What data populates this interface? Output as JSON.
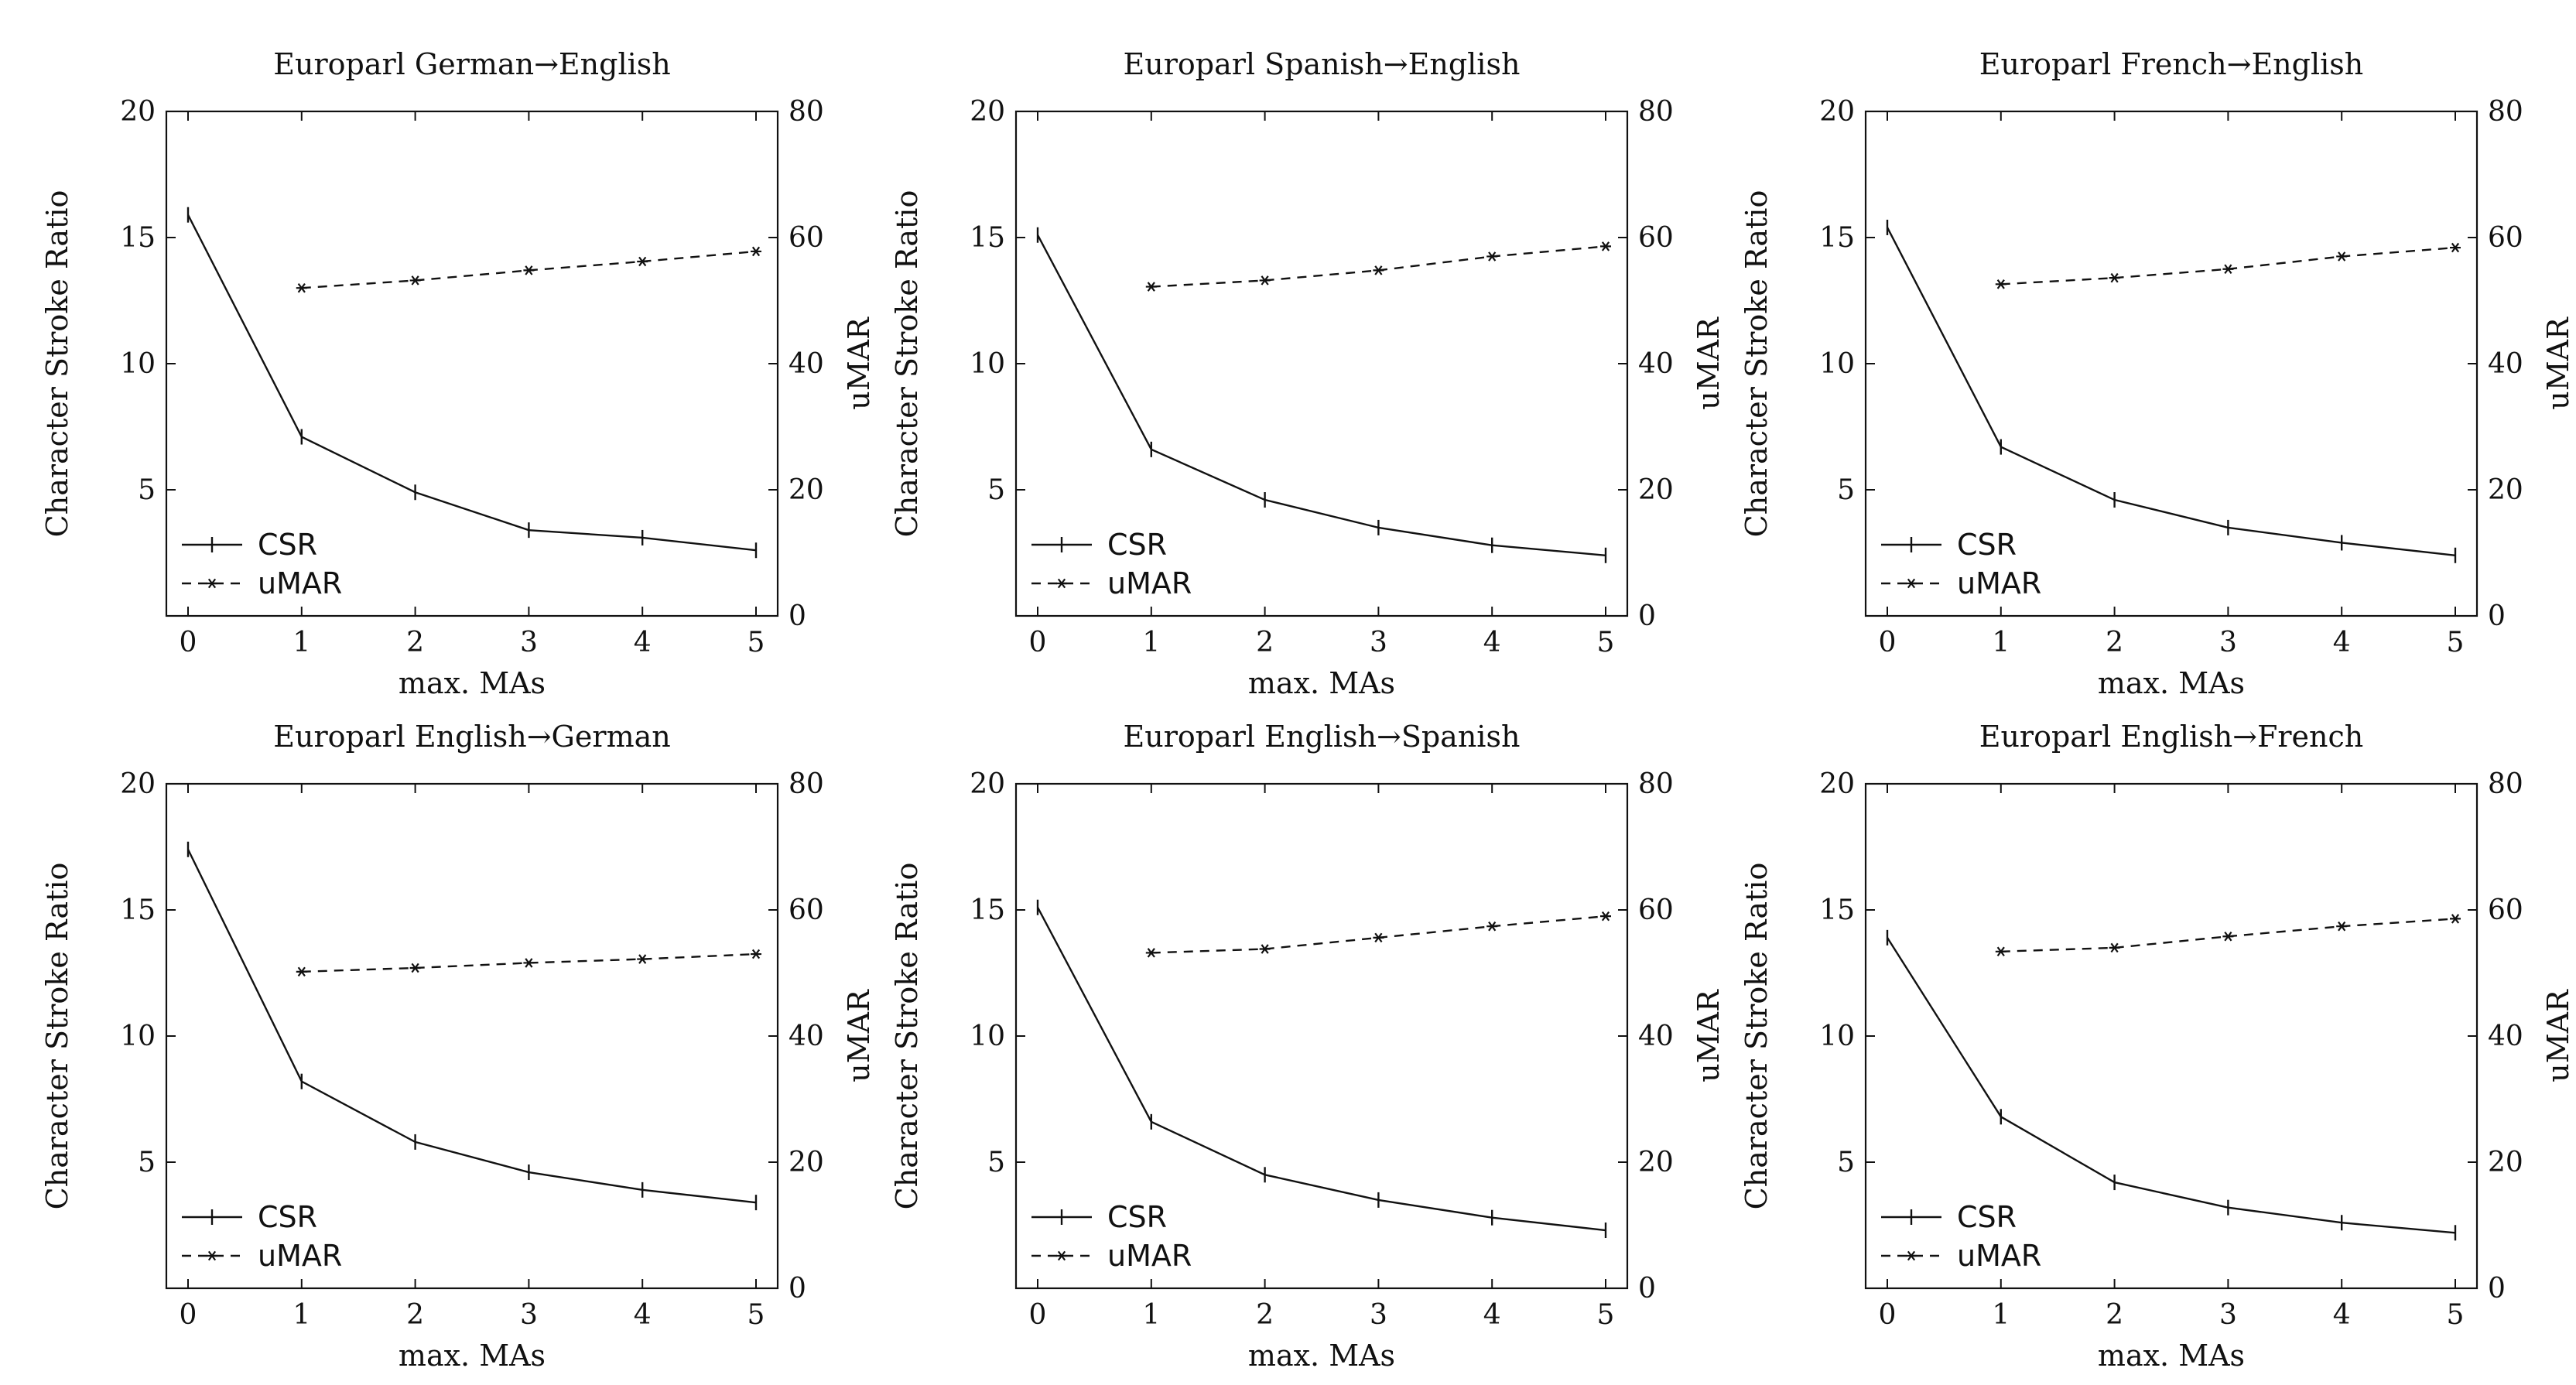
{
  "figure": {
    "description_none": ""
  },
  "chart_data": [
    {
      "type": "line",
      "title": "Europarl German→English",
      "xlabel": "max. MAs",
      "ylabel": "Character Stroke Ratio",
      "y2label": "uMAR",
      "xlim": [
        0,
        5
      ],
      "ylim": [
        0,
        20
      ],
      "y2lim": [
        0,
        80
      ],
      "xticks": [
        0,
        1,
        2,
        3,
        4,
        5
      ],
      "yticks": [
        5,
        10,
        15,
        20
      ],
      "y2ticks": [
        0,
        20,
        40,
        60,
        80
      ],
      "legend_position": "bottom-left",
      "series": [
        {
          "name": "CSR",
          "axis": "left",
          "style": "solid",
          "marker": "plus",
          "x": [
            0,
            1,
            2,
            3,
            4,
            5
          ],
          "values": [
            15.9,
            7.1,
            4.9,
            3.4,
            3.1,
            2.6
          ]
        },
        {
          "name": "uMAR",
          "axis": "right",
          "style": "dashed",
          "marker": "star",
          "x": [
            1,
            2,
            3,
            4,
            5
          ],
          "values": [
            52.0,
            53.2,
            54.8,
            56.2,
            57.8
          ]
        }
      ]
    },
    {
      "type": "line",
      "title": "Europarl Spanish→English",
      "xlabel": "max. MAs",
      "ylabel": "Character Stroke Ratio",
      "y2label": "uMAR",
      "xlim": [
        0,
        5
      ],
      "ylim": [
        0,
        20
      ],
      "y2lim": [
        0,
        80
      ],
      "xticks": [
        0,
        1,
        2,
        3,
        4,
        5
      ],
      "yticks": [
        5,
        10,
        15,
        20
      ],
      "y2ticks": [
        0,
        20,
        40,
        60,
        80
      ],
      "legend_position": "bottom-left",
      "series": [
        {
          "name": "CSR",
          "axis": "left",
          "style": "solid",
          "marker": "plus",
          "x": [
            0,
            1,
            2,
            3,
            4,
            5
          ],
          "values": [
            15.1,
            6.6,
            4.6,
            3.5,
            2.8,
            2.4
          ]
        },
        {
          "name": "uMAR",
          "axis": "right",
          "style": "dashed",
          "marker": "star",
          "x": [
            1,
            2,
            3,
            4,
            5
          ],
          "values": [
            52.2,
            53.2,
            54.8,
            57.0,
            58.6
          ]
        }
      ]
    },
    {
      "type": "line",
      "title": "Europarl French→English",
      "xlabel": "max. MAs",
      "ylabel": "Character Stroke Ratio",
      "y2label": "uMAR",
      "xlim": [
        0,
        5
      ],
      "ylim": [
        0,
        20
      ],
      "y2lim": [
        0,
        80
      ],
      "xticks": [
        0,
        1,
        2,
        3,
        4,
        5
      ],
      "yticks": [
        5,
        10,
        15,
        20
      ],
      "y2ticks": [
        0,
        20,
        40,
        60,
        80
      ],
      "legend_position": "bottom-left",
      "series": [
        {
          "name": "CSR",
          "axis": "left",
          "style": "solid",
          "marker": "plus",
          "x": [
            0,
            1,
            2,
            3,
            4,
            5
          ],
          "values": [
            15.4,
            6.7,
            4.6,
            3.5,
            2.9,
            2.4
          ]
        },
        {
          "name": "uMAR",
          "axis": "right",
          "style": "dashed",
          "marker": "star",
          "x": [
            1,
            2,
            3,
            4,
            5
          ],
          "values": [
            52.6,
            53.6,
            55.0,
            57.0,
            58.4
          ]
        }
      ]
    },
    {
      "type": "line",
      "title": "Europarl English→German",
      "xlabel": "max. MAs",
      "ylabel": "Character Stroke Ratio",
      "y2label": "uMAR",
      "xlim": [
        0,
        5
      ],
      "ylim": [
        0,
        20
      ],
      "y2lim": [
        0,
        80
      ],
      "xticks": [
        0,
        1,
        2,
        3,
        4,
        5
      ],
      "yticks": [
        5,
        10,
        15,
        20
      ],
      "y2ticks": [
        0,
        20,
        40,
        60,
        80
      ],
      "legend_position": "bottom-left",
      "series": [
        {
          "name": "CSR",
          "axis": "left",
          "style": "solid",
          "marker": "plus",
          "x": [
            0,
            1,
            2,
            3,
            4,
            5
          ],
          "values": [
            17.4,
            8.2,
            5.8,
            4.6,
            3.9,
            3.4
          ]
        },
        {
          "name": "uMAR",
          "axis": "right",
          "style": "dashed",
          "marker": "star",
          "x": [
            1,
            2,
            3,
            4,
            5
          ],
          "values": [
            50.2,
            50.8,
            51.6,
            52.2,
            53.0
          ]
        }
      ]
    },
    {
      "type": "line",
      "title": "Europarl English→Spanish",
      "xlabel": "max. MAs",
      "ylabel": "Character Stroke Ratio",
      "y2label": "uMAR",
      "xlim": [
        0,
        5
      ],
      "ylim": [
        0,
        20
      ],
      "y2lim": [
        0,
        80
      ],
      "xticks": [
        0,
        1,
        2,
        3,
        4,
        5
      ],
      "yticks": [
        5,
        10,
        15,
        20
      ],
      "y2ticks": [
        0,
        20,
        40,
        60,
        80
      ],
      "legend_position": "bottom-left",
      "series": [
        {
          "name": "CSR",
          "axis": "left",
          "style": "solid",
          "marker": "plus",
          "x": [
            0,
            1,
            2,
            3,
            4,
            5
          ],
          "values": [
            15.1,
            6.6,
            4.5,
            3.5,
            2.8,
            2.3
          ]
        },
        {
          "name": "uMAR",
          "axis": "right",
          "style": "dashed",
          "marker": "star",
          "x": [
            1,
            2,
            3,
            4,
            5
          ],
          "values": [
            53.2,
            53.8,
            55.6,
            57.4,
            59.0
          ]
        }
      ]
    },
    {
      "type": "line",
      "title": "Europarl English→French",
      "xlabel": "max. MAs",
      "ylabel": "Character Stroke Ratio",
      "y2label": "uMAR",
      "xlim": [
        0,
        5
      ],
      "ylim": [
        0,
        20
      ],
      "y2lim": [
        0,
        80
      ],
      "xticks": [
        0,
        1,
        2,
        3,
        4,
        5
      ],
      "yticks": [
        5,
        10,
        15,
        20
      ],
      "y2ticks": [
        0,
        20,
        40,
        60,
        80
      ],
      "legend_position": "bottom-left",
      "series": [
        {
          "name": "CSR",
          "axis": "left",
          "style": "solid",
          "marker": "plus",
          "x": [
            0,
            1,
            2,
            3,
            4,
            5
          ],
          "values": [
            13.9,
            6.8,
            4.2,
            3.2,
            2.6,
            2.2
          ]
        },
        {
          "name": "uMAR",
          "axis": "right",
          "style": "dashed",
          "marker": "star",
          "x": [
            1,
            2,
            3,
            4,
            5
          ],
          "values": [
            53.4,
            54.0,
            55.8,
            57.4,
            58.6
          ]
        }
      ]
    }
  ]
}
